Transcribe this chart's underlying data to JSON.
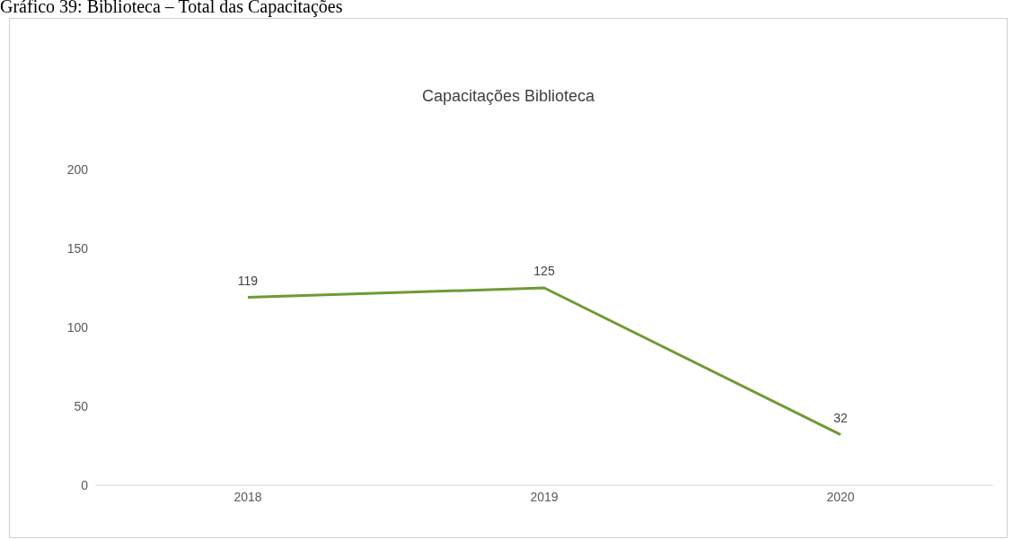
{
  "chart_data": {
    "type": "line",
    "title": "Capacitações Biblioteca",
    "annotations": [
      "Gráfico 39: Biblioteca – Total das Capacitações"
    ],
    "categories": [
      "2018",
      "2019",
      "2020"
    ],
    "series": [
      {
        "color": "#6f9a35",
        "values": [
          119,
          125,
          32
        ]
      }
    ],
    "ylim": [
      0,
      200
    ],
    "yticks": [
      0,
      50,
      100,
      150,
      200
    ],
    "grid": false,
    "data_labels": true,
    "marker": "none",
    "legend": false
  }
}
